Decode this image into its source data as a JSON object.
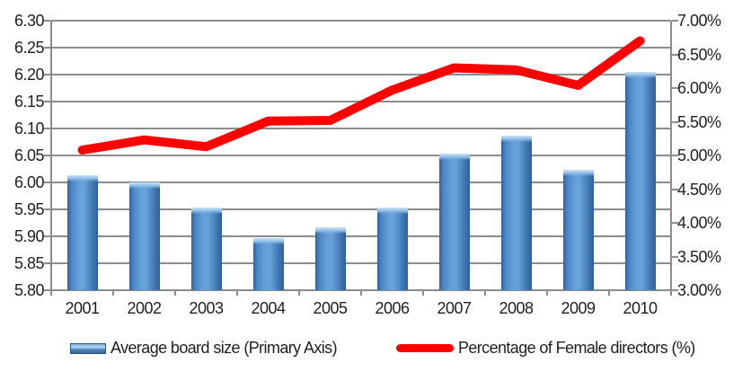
{
  "chart_data": {
    "type": "bar",
    "subtype": "dual-axis combo (bars + line)",
    "categories": [
      "2001",
      "2002",
      "2003",
      "2004",
      "2005",
      "2006",
      "2007",
      "2008",
      "2009",
      "2010"
    ],
    "series": [
      {
        "name": "Average board size (Primary Axis)",
        "type": "bar",
        "axis": "left",
        "color": "#4a86c9",
        "values": [
          6.013,
          6.0,
          5.953,
          5.897,
          5.917,
          5.953,
          6.053,
          6.087,
          6.023,
          6.205
        ]
      },
      {
        "name": "Percentage of Female directors (%)",
        "type": "line",
        "axis": "right",
        "color": "#ff0000",
        "values": [
          5.08,
          5.23,
          5.13,
          5.51,
          5.52,
          5.97,
          6.3,
          6.27,
          6.04,
          6.7
        ]
      }
    ],
    "left_axis": {
      "min": 5.8,
      "max": 6.3,
      "step": 0.05,
      "ticks": [
        "6.30",
        "6.25",
        "6.20",
        "6.15",
        "6.10",
        "6.05",
        "6.00",
        "5.95",
        "5.90",
        "5.85",
        "5.80"
      ]
    },
    "right_axis": {
      "min": 3.0,
      "max": 7.0,
      "step": 0.5,
      "ticks": [
        "7.00%",
        "6.50%",
        "6.00%",
        "5.50%",
        "5.00%",
        "4.50%",
        "4.00%",
        "3.50%",
        "3.00%"
      ]
    },
    "grid": true,
    "gridline_color": "#8c8c8c",
    "background": "#ffffff",
    "legend_position": "bottom",
    "title": "",
    "xlabel": "",
    "ylabel_left": "",
    "ylabel_right": ""
  }
}
